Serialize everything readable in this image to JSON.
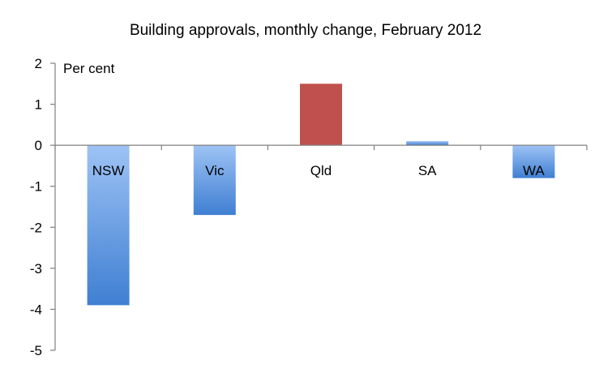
{
  "chart_data": {
    "type": "bar",
    "title": "Building approvals, monthly change, February 2012",
    "ylabel": "Per cent",
    "xlabel": "",
    "categories": [
      "NSW",
      "Vic",
      "Qld",
      "SA",
      "WA"
    ],
    "values": [
      -3.9,
      -1.7,
      1.5,
      0.1,
      -0.8
    ],
    "colors": [
      "#4a86d6",
      "#4a86d6",
      "#c0504d",
      "#4a86d6",
      "#4a86d6"
    ],
    "ylim": [
      -5,
      2
    ],
    "yticks": [
      2,
      1,
      0,
      -1,
      -2,
      -3,
      -4,
      -5
    ],
    "legend": "none",
    "grid": false
  }
}
